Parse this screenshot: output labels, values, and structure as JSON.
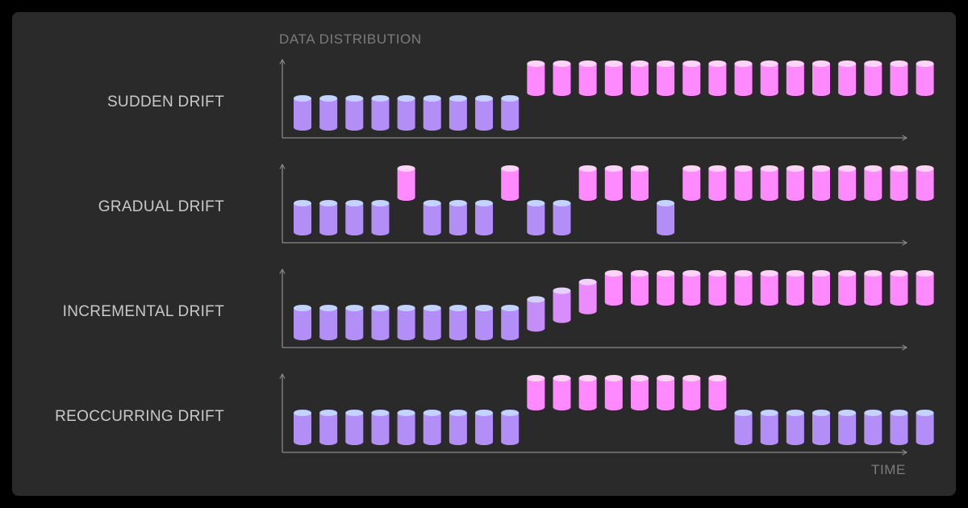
{
  "colors": {
    "background": "#2a2a2a",
    "old_distribution_body": "#b28ef6",
    "old_distribution_top": "#c4d2ff",
    "new_distribution_body": "#ff8aff",
    "new_distribution_top": "#ffd2f8",
    "axis": "#8a8a8a",
    "label_text": "#c9c9c9",
    "axis_caption_text": "#7c7c7c"
  },
  "axis": {
    "y_caption": "DATA DISTRIBUTION",
    "x_caption": "TIME"
  },
  "levels_legend": "level 0 = old distribution (purple, low); level 1 = new distribution (pink, high); fractional values are intermediate",
  "rows": [
    {
      "label": "SUDDEN DRIFT",
      "levels": [
        0,
        0,
        0,
        0,
        0,
        0,
        0,
        0,
        0,
        1,
        1,
        1,
        1,
        1,
        1,
        1,
        1,
        1,
        1,
        1,
        1,
        1,
        1,
        1,
        1
      ]
    },
    {
      "label": "GRADUAL DRIFT",
      "levels": [
        0,
        0,
        0,
        0,
        1,
        0,
        0,
        0,
        1,
        0,
        0,
        1,
        1,
        1,
        0,
        1,
        1,
        1,
        1,
        1,
        1,
        1,
        1,
        1,
        1
      ]
    },
    {
      "label": "INCREMENTAL DRIFT",
      "levels": [
        0,
        0,
        0,
        0,
        0,
        0,
        0,
        0,
        0,
        0.25,
        0.5,
        0.75,
        1,
        1,
        1,
        1,
        1,
        1,
        1,
        1,
        1,
        1,
        1,
        1,
        1
      ]
    },
    {
      "label": "REOCCURRING DRIFT",
      "levels": [
        0,
        0,
        0,
        0,
        0,
        0,
        0,
        0,
        0,
        1,
        1,
        1,
        1,
        1,
        1,
        1,
        1,
        0,
        0,
        0,
        0,
        0,
        0,
        0,
        0
      ]
    }
  ]
}
